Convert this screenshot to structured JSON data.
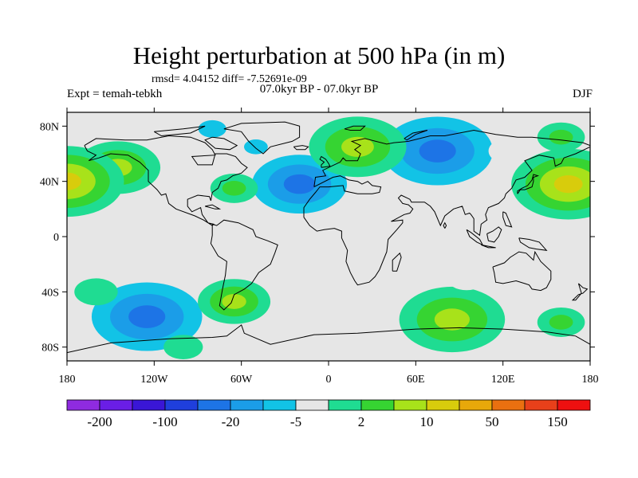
{
  "chart_data": {
    "type": "heatmap",
    "title": "Height perturbation at 500 hPa (in m)",
    "stats_text": "rmsd= 4.04152 diff= -7.52691e-09",
    "left_label": "Expt = temah-tebkh",
    "center_label": "07.0kyr BP - 07.0kyr BP",
    "right_label": "DJF",
    "projection": "cylindrical equidistant",
    "lon_range": [
      -180,
      180
    ],
    "lat_range": [
      -90,
      90
    ],
    "x_ticks": [
      {
        "value": -180,
        "label": "180"
      },
      {
        "value": -120,
        "label": "120W"
      },
      {
        "value": -60,
        "label": "60W"
      },
      {
        "value": 0,
        "label": "0"
      },
      {
        "value": 60,
        "label": "60E"
      },
      {
        "value": 120,
        "label": "120E"
      },
      {
        "value": 180,
        "label": "180"
      }
    ],
    "y_ticks": [
      {
        "value": 80,
        "label": "80N"
      },
      {
        "value": 40,
        "label": "40N"
      },
      {
        "value": 0,
        "label": "0"
      },
      {
        "value": -40,
        "label": "40S"
      },
      {
        "value": -80,
        "label": "80S"
      }
    ],
    "colorbar": {
      "colors": [
        "#8f2be0",
        "#6a1ee6",
        "#3a16d6",
        "#1f3fdc",
        "#1d74e6",
        "#1b9de8",
        "#12c3e6",
        "#e6e6e6",
        "#1fdc92",
        "#36d432",
        "#a8e21a",
        "#d8cc0c",
        "#e8a80a",
        "#ea7010",
        "#e8401a",
        "#ee1010"
      ],
      "labels": [
        "-200",
        "-100",
        "-20",
        "-5",
        "2",
        "10",
        "50",
        "150"
      ]
    },
    "anomalies": [
      {
        "lon": -125,
        "lat": -58,
        "value": -30
      },
      {
        "lon": -20,
        "lat": 38,
        "value": -25
      },
      {
        "lon": 75,
        "lat": 62,
        "value": -30
      },
      {
        "lon": -80,
        "lat": 78,
        "value": -8
      },
      {
        "lon": -50,
        "lat": 65,
        "value": -6
      },
      {
        "lon": 125,
        "lat": 62,
        "value": -5
      },
      {
        "lon": -25,
        "lat": 85,
        "value": -4
      },
      {
        "lon": -5,
        "lat": -50,
        "value": -5
      },
      {
        "lon": 85,
        "lat": -60,
        "value": 20
      },
      {
        "lon": 160,
        "lat": -62,
        "value": 6
      },
      {
        "lon": -160,
        "lat": -40,
        "value": 5
      },
      {
        "lon": 165,
        "lat": 38,
        "value": 22
      },
      {
        "lon": -145,
        "lat": 50,
        "value": 15
      },
      {
        "lon": 20,
        "lat": 65,
        "value": 18
      },
      {
        "lon": 160,
        "lat": 72,
        "value": 6
      },
      {
        "lon": -65,
        "lat": -47,
        "value": 12
      },
      {
        "lon": -65,
        "lat": 35,
        "value": 6
      },
      {
        "lon": -180,
        "lat": 40,
        "value": 22
      },
      {
        "lon": 150,
        "lat": -25,
        "value": -4
      },
      {
        "lon": 95,
        "lat": -30,
        "value": -4
      },
      {
        "lon": 45,
        "lat": -35,
        "value": -3
      },
      {
        "lon": -100,
        "lat": -80,
        "value": 4
      }
    ]
  }
}
